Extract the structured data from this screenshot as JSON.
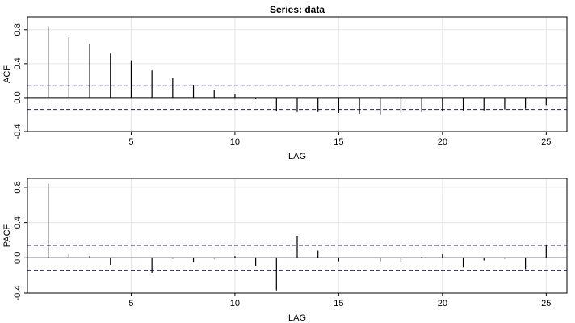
{
  "title": "Series:  data",
  "chart_data": [
    {
      "type": "bar",
      "name": "ACF",
      "ylabel": "ACF",
      "xlabel": "LAG",
      "xlim": [
        0,
        26
      ],
      "ylim": [
        -0.4,
        0.95
      ],
      "xticks": [
        5,
        10,
        15,
        20,
        25
      ],
      "yticks": [
        -0.4,
        0.0,
        0.4,
        0.8
      ],
      "ytick_labels": [
        "-0.4",
        "0.0",
        "0.4",
        "0.8"
      ],
      "grid": true,
      "confidence_band": [
        -0.14,
        0.14
      ],
      "lags": [
        1,
        2,
        3,
        4,
        5,
        6,
        7,
        8,
        9,
        10,
        11,
        12,
        13,
        14,
        15,
        16,
        17,
        18,
        19,
        20,
        21,
        22,
        23,
        24,
        25
      ],
      "values": [
        0.84,
        0.71,
        0.63,
        0.52,
        0.44,
        0.32,
        0.23,
        0.15,
        0.09,
        0.04,
        -0.01,
        -0.16,
        -0.17,
        -0.17,
        -0.18,
        -0.19,
        -0.21,
        -0.18,
        -0.17,
        -0.16,
        -0.15,
        -0.15,
        -0.14,
        -0.13,
        -0.09
      ]
    },
    {
      "type": "bar",
      "name": "PACF",
      "ylabel": "PACF",
      "xlabel": "LAG",
      "xlim": [
        0,
        26
      ],
      "ylim": [
        -0.4,
        0.9
      ],
      "xticks": [
        5,
        10,
        15,
        20,
        25
      ],
      "yticks": [
        -0.4,
        0.0,
        0.4,
        0.8
      ],
      "ytick_labels": [
        "-0.4",
        "0.0",
        "0.4",
        "0.8"
      ],
      "grid": true,
      "confidence_band": [
        -0.14,
        0.14
      ],
      "lags": [
        1,
        2,
        3,
        4,
        5,
        6,
        7,
        8,
        9,
        10,
        11,
        12,
        13,
        14,
        15,
        16,
        17,
        18,
        19,
        20,
        21,
        22,
        23,
        24,
        25
      ],
      "values": [
        0.84,
        0.04,
        0.02,
        -0.08,
        0.0,
        -0.17,
        -0.01,
        -0.05,
        -0.01,
        0.02,
        -0.09,
        -0.37,
        0.25,
        0.08,
        -0.04,
        0.0,
        -0.04,
        -0.05,
        0.01,
        0.04,
        -0.11,
        -0.03,
        -0.01,
        -0.13,
        0.15
      ]
    }
  ],
  "colors": {
    "bars": "#000000",
    "band": "#1c1c6e",
    "grid": "#e6e6e6",
    "frame": "#000000"
  }
}
